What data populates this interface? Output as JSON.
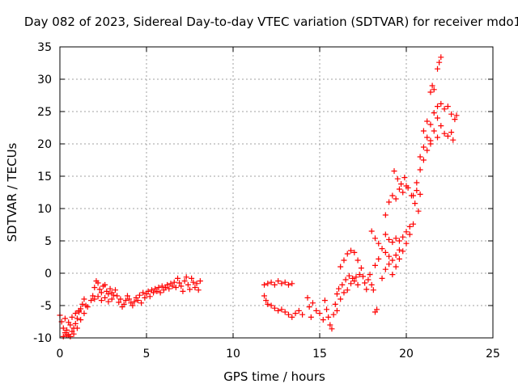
{
  "chart_data": {
    "type": "scatter",
    "title": "Day 082 of 2023, Sidereal Day-to-day VTEC variation (SDTVAR) for receiver mdo1",
    "xlabel": "GPS time / hours",
    "ylabel": "SDTVAR / TECUs",
    "xlim": [
      0,
      25
    ],
    "ylim": [
      -10,
      35
    ],
    "xticks": [
      0,
      5,
      10,
      15,
      20,
      25
    ],
    "yticks": [
      -10,
      -5,
      0,
      5,
      10,
      15,
      20,
      25,
      30,
      35
    ],
    "grid": true,
    "marker": "plus",
    "color": "#ff0000",
    "series": [
      {
        "points": [
          [
            0.0,
            -6.5
          ],
          [
            0.1,
            -7.5
          ],
          [
            0.2,
            -8.5
          ],
          [
            0.3,
            -9.2
          ],
          [
            0.4,
            -8.8
          ],
          [
            0.5,
            -9.5
          ],
          [
            0.6,
            -8.0
          ],
          [
            0.7,
            -9.0
          ],
          [
            0.8,
            -8.5
          ],
          [
            0.9,
            -7.8
          ],
          [
            1.0,
            -7.0
          ],
          [
            1.1,
            -6.0
          ],
          [
            1.2,
            -5.5
          ],
          [
            1.3,
            -4.8
          ],
          [
            1.4,
            -4.0
          ],
          [
            1.5,
            -5.0
          ],
          [
            0.2,
            -9.8
          ],
          [
            0.4,
            -9.6
          ],
          [
            0.6,
            -9.8
          ],
          [
            0.8,
            -9.4
          ],
          [
            1.0,
            -8.5
          ],
          [
            1.2,
            -7.2
          ],
          [
            1.4,
            -6.2
          ],
          [
            1.6,
            -5.2
          ],
          [
            1.8,
            -4.2
          ],
          [
            0.3,
            -7.0
          ],
          [
            0.5,
            -7.6
          ],
          [
            0.7,
            -6.8
          ],
          [
            0.9,
            -6.2
          ],
          [
            1.1,
            -5.8
          ],
          [
            1.9,
            -3.5
          ],
          [
            2.0,
            -2.2
          ],
          [
            2.1,
            -1.2
          ],
          [
            2.2,
            -1.5
          ],
          [
            2.3,
            -2.5
          ],
          [
            2.4,
            -3.0
          ],
          [
            2.5,
            -2.0
          ],
          [
            2.6,
            -1.8
          ],
          [
            2.7,
            -2.8
          ],
          [
            2.8,
            -3.2
          ],
          [
            2.9,
            -2.4
          ],
          [
            3.0,
            -3.0
          ],
          [
            3.1,
            -3.4
          ],
          [
            3.2,
            -2.6
          ],
          [
            2.0,
            -4.0
          ],
          [
            2.2,
            -3.6
          ],
          [
            2.4,
            -4.2
          ],
          [
            2.6,
            -3.8
          ],
          [
            2.8,
            -4.4
          ],
          [
            3.0,
            -4.0
          ],
          [
            3.3,
            -3.5
          ],
          [
            3.4,
            -4.5
          ],
          [
            3.5,
            -4.0
          ],
          [
            3.6,
            -5.2
          ],
          [
            3.7,
            -4.8
          ],
          [
            3.8,
            -4.2
          ],
          [
            3.9,
            -3.5
          ],
          [
            4.0,
            -4.0
          ],
          [
            4.1,
            -4.6
          ],
          [
            4.2,
            -5.0
          ],
          [
            4.3,
            -4.4
          ],
          [
            4.4,
            -3.8
          ],
          [
            4.5,
            -4.2
          ],
          [
            4.6,
            -3.4
          ],
          [
            4.7,
            -4.6
          ],
          [
            4.8,
            -3.0
          ],
          [
            4.9,
            -3.8
          ],
          [
            5.0,
            -3.2
          ],
          [
            5.1,
            -2.8
          ],
          [
            5.2,
            -3.6
          ],
          [
            5.3,
            -2.6
          ],
          [
            5.4,
            -3.0
          ],
          [
            5.5,
            -2.4
          ],
          [
            5.6,
            -2.8
          ],
          [
            5.7,
            -2.2
          ],
          [
            5.8,
            -3.0
          ],
          [
            5.9,
            -2.0
          ],
          [
            6.0,
            -2.6
          ],
          [
            6.1,
            -2.2
          ],
          [
            6.2,
            -1.8
          ],
          [
            6.3,
            -2.4
          ],
          [
            6.4,
            -1.6
          ],
          [
            6.5,
            -2.0
          ],
          [
            6.6,
            -1.4
          ],
          [
            6.7,
            -2.2
          ],
          [
            6.8,
            -0.8
          ],
          [
            6.9,
            -1.5
          ],
          [
            7.0,
            -2.0
          ],
          [
            7.1,
            -2.8
          ],
          [
            7.2,
            -1.2
          ],
          [
            7.3,
            -0.6
          ],
          [
            7.4,
            -1.8
          ],
          [
            7.5,
            -2.5
          ],
          [
            7.6,
            -0.8
          ],
          [
            7.7,
            -1.4
          ],
          [
            7.8,
            -2.2
          ],
          [
            7.9,
            -1.6
          ],
          [
            8.0,
            -2.6
          ],
          [
            8.1,
            -1.2
          ],
          [
            11.8,
            -1.8
          ],
          [
            12.0,
            -1.6
          ],
          [
            12.2,
            -1.4
          ],
          [
            12.4,
            -1.8
          ],
          [
            12.6,
            -1.2
          ],
          [
            12.8,
            -1.6
          ],
          [
            13.0,
            -1.4
          ],
          [
            13.2,
            -1.8
          ],
          [
            13.4,
            -1.6
          ],
          [
            11.8,
            -3.5
          ],
          [
            11.9,
            -4.2
          ],
          [
            12.0,
            -4.8
          ],
          [
            12.2,
            -5.0
          ],
          [
            12.4,
            -5.4
          ],
          [
            12.6,
            -5.8
          ],
          [
            12.8,
            -5.6
          ],
          [
            13.0,
            -6.0
          ],
          [
            13.2,
            -6.4
          ],
          [
            13.4,
            -6.8
          ],
          [
            13.6,
            -6.2
          ],
          [
            13.8,
            -5.8
          ],
          [
            14.0,
            -6.4
          ],
          [
            14.3,
            -3.8
          ],
          [
            14.4,
            -5.2
          ],
          [
            14.5,
            -6.8
          ],
          [
            14.6,
            -4.6
          ],
          [
            14.8,
            -5.8
          ],
          [
            15.0,
            -6.2
          ],
          [
            15.2,
            -7.2
          ],
          [
            15.3,
            -4.2
          ],
          [
            15.4,
            -5.6
          ],
          [
            15.5,
            -6.8
          ],
          [
            15.6,
            -8.0
          ],
          [
            15.7,
            -8.6
          ],
          [
            15.8,
            -6.4
          ],
          [
            15.9,
            -4.8
          ],
          [
            16.0,
            -3.2
          ],
          [
            16.0,
            -5.8
          ],
          [
            16.1,
            -2.4
          ],
          [
            16.2,
            -4.0
          ],
          [
            16.3,
            -1.8
          ],
          [
            16.4,
            -3.0
          ],
          [
            16.5,
            -1.0
          ],
          [
            16.6,
            -2.6
          ],
          [
            16.7,
            -0.4
          ],
          [
            16.8,
            -1.6
          ],
          [
            16.9,
            -0.8
          ],
          [
            17.0,
            -1.2
          ],
          [
            17.1,
            -0.6
          ],
          [
            17.2,
            -1.8
          ],
          [
            17.3,
            -0.2
          ],
          [
            16.2,
            1.0
          ],
          [
            16.4,
            2.0
          ],
          [
            16.6,
            3.0
          ],
          [
            16.8,
            3.5
          ],
          [
            17.0,
            3.2
          ],
          [
            17.2,
            2.0
          ],
          [
            17.4,
            0.8
          ],
          [
            17.5,
            -0.5
          ],
          [
            17.6,
            -1.5
          ],
          [
            17.7,
            -2.5
          ],
          [
            17.8,
            -1.0
          ],
          [
            17.9,
            -0.2
          ],
          [
            18.0,
            -1.8
          ],
          [
            18.1,
            -2.6
          ],
          [
            18.2,
            -6.0
          ],
          [
            18.3,
            -5.6
          ],
          [
            18.0,
            6.5
          ],
          [
            18.2,
            5.4
          ],
          [
            18.4,
            4.6
          ],
          [
            18.6,
            3.8
          ],
          [
            18.8,
            3.2
          ],
          [
            19.0,
            2.6
          ],
          [
            19.2,
            2.0
          ],
          [
            19.4,
            2.8
          ],
          [
            19.6,
            3.6
          ],
          [
            18.2,
            1.2
          ],
          [
            18.4,
            2.2
          ],
          [
            18.6,
            -0.8
          ],
          [
            18.8,
            0.6
          ],
          [
            19.0,
            1.4
          ],
          [
            19.2,
            -0.2
          ],
          [
            19.4,
            1.0
          ],
          [
            19.6,
            2.2
          ],
          [
            19.8,
            3.4
          ],
          [
            20.0,
            4.6
          ],
          [
            20.2,
            6.0
          ],
          [
            20.4,
            7.6
          ],
          [
            18.8,
            6.0
          ],
          [
            19.0,
            5.2
          ],
          [
            19.2,
            4.8
          ],
          [
            19.4,
            5.4
          ],
          [
            19.6,
            5.0
          ],
          [
            19.8,
            5.6
          ],
          [
            20.0,
            6.4
          ],
          [
            20.2,
            7.2
          ],
          [
            18.8,
            9.0
          ],
          [
            19.0,
            11.0
          ],
          [
            19.2,
            12.0
          ],
          [
            19.4,
            11.5
          ],
          [
            19.6,
            13.0
          ],
          [
            19.8,
            12.5
          ],
          [
            20.0,
            13.5
          ],
          [
            19.3,
            15.8
          ],
          [
            19.5,
            14.6
          ],
          [
            19.7,
            13.8
          ],
          [
            19.9,
            14.8
          ],
          [
            20.1,
            13.2
          ],
          [
            20.3,
            12.0
          ],
          [
            20.5,
            10.8
          ],
          [
            20.7,
            9.6
          ],
          [
            20.6,
            12.8
          ],
          [
            20.8,
            12.2
          ],
          [
            20.4,
            12.0
          ],
          [
            20.6,
            14.0
          ],
          [
            20.8,
            16.0
          ],
          [
            21.0,
            17.5
          ],
          [
            21.2,
            19.0
          ],
          [
            21.4,
            20.5
          ],
          [
            21.6,
            22.0
          ],
          [
            21.8,
            21.0
          ],
          [
            20.8,
            18.0
          ],
          [
            21.0,
            19.5
          ],
          [
            21.2,
            21.0
          ],
          [
            21.4,
            20.0
          ],
          [
            21.0,
            22.0
          ],
          [
            21.2,
            23.5
          ],
          [
            21.4,
            23.0
          ],
          [
            21.6,
            24.8
          ],
          [
            21.8,
            24.0
          ],
          [
            22.0,
            22.8
          ],
          [
            22.2,
            21.6
          ],
          [
            22.4,
            21.2
          ],
          [
            22.6,
            21.8
          ],
          [
            22.7,
            20.6
          ],
          [
            21.8,
            25.8
          ],
          [
            22.0,
            26.2
          ],
          [
            22.2,
            25.4
          ],
          [
            22.4,
            25.8
          ],
          [
            22.6,
            24.6
          ],
          [
            22.8,
            23.8
          ],
          [
            22.9,
            24.4
          ],
          [
            21.4,
            28.0
          ],
          [
            21.5,
            29.0
          ],
          [
            21.6,
            28.4
          ],
          [
            21.8,
            31.6
          ],
          [
            21.9,
            32.6
          ],
          [
            22.0,
            33.4
          ]
        ]
      }
    ]
  }
}
